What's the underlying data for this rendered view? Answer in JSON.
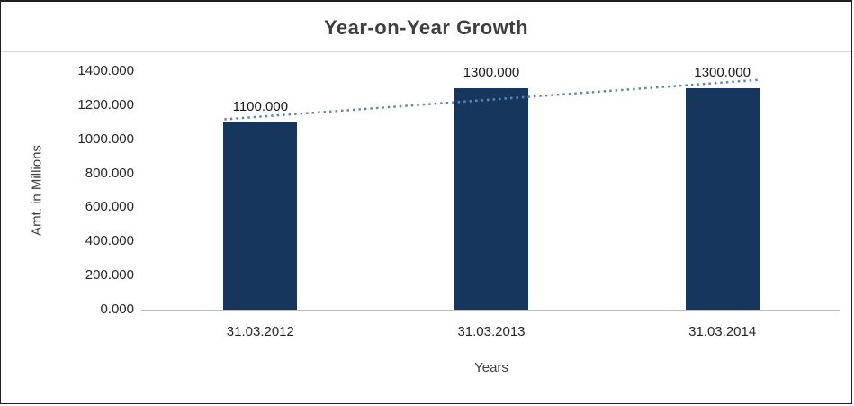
{
  "chart_data": {
    "type": "bar",
    "title": "Year-on-Year Growth",
    "categories": [
      "31.03.2012",
      "31.03.2013",
      "31.03.2014"
    ],
    "values": [
      1100,
      1300,
      1300
    ],
    "value_labels": [
      "1100.000",
      "1300.000",
      "1300.000"
    ],
    "xlabel": "Years",
    "ylabel": "Amt. in Millions",
    "ylim": [
      0,
      1400
    ],
    "y_tick_step": 200,
    "y_ticks": [
      "0.000",
      "200.000",
      "400.000",
      "600.000",
      "800.000",
      "1000.000",
      "1200.000",
      "1400.000"
    ],
    "grid": "off",
    "legend": "none",
    "bar_color": "#17365d",
    "trendline": {
      "type": "linear",
      "style": "dotted",
      "color": "#5b87b8",
      "start_value": 1133,
      "end_value": 1333
    }
  }
}
